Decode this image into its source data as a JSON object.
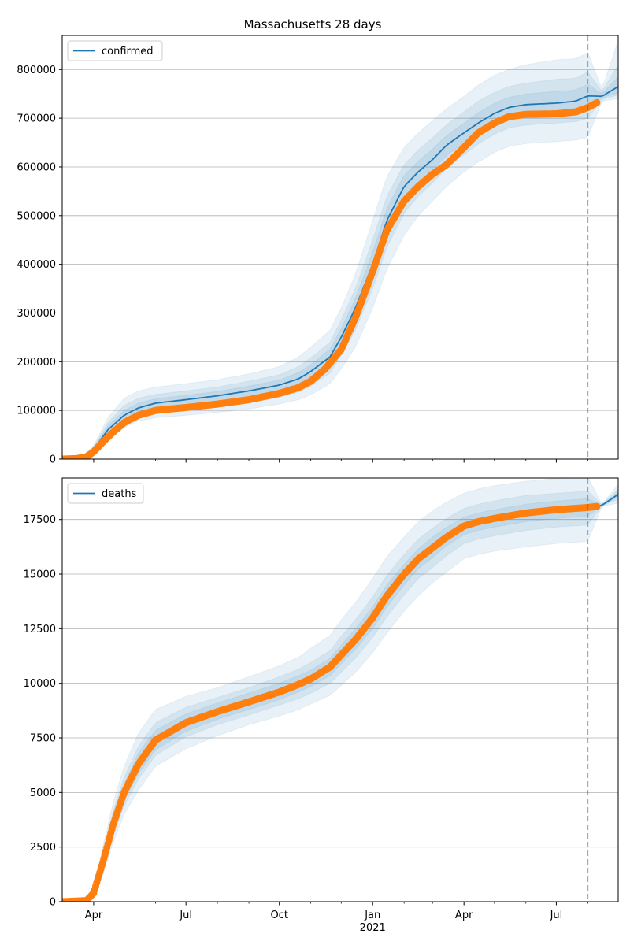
{
  "chart_data": [
    {
      "type": "line",
      "title": "Massachusetts 28 days",
      "legend": "confirmed",
      "legend_position": "top-left",
      "grid": "y",
      "xlabel": "",
      "ylabel": "",
      "x_ticks": [
        {
          "label": "Apr",
          "sub": ""
        },
        {
          "label": "Jul",
          "sub": ""
        },
        {
          "label": "Oct",
          "sub": ""
        },
        {
          "label": "Jan",
          "sub": "2021"
        },
        {
          "label": "Apr",
          "sub": ""
        },
        {
          "label": "Jul",
          "sub": ""
        }
      ],
      "xlim": [
        "2020-03-01",
        "2021-08-31"
      ],
      "forecast_start": "2021-08-01",
      "ylim": [
        0,
        870000
      ],
      "y_ticks": [
        0,
        100000,
        200000,
        300000,
        400000,
        500000,
        600000,
        700000,
        800000
      ],
      "model_series": {
        "name": "confirmed",
        "color": "#1f77b4",
        "x": [
          "2020-03-01",
          "2020-03-20",
          "2020-04-01",
          "2020-04-15",
          "2020-05-01",
          "2020-05-15",
          "2020-06-01",
          "2020-07-01",
          "2020-08-01",
          "2020-09-01",
          "2020-10-01",
          "2020-10-20",
          "2020-11-01",
          "2020-11-20",
          "2020-12-01",
          "2020-12-15",
          "2021-01-01",
          "2021-01-15",
          "2021-02-01",
          "2021-02-15",
          "2021-03-01",
          "2021-03-15",
          "2021-04-01",
          "2021-04-15",
          "2021-05-01",
          "2021-05-15",
          "2021-06-01",
          "2021-07-01",
          "2021-07-20",
          "2021-08-01",
          "2021-08-15",
          "2021-08-31"
        ],
        "values": [
          0,
          3000,
          20000,
          60000,
          90000,
          105000,
          115000,
          122000,
          130000,
          140000,
          152000,
          165000,
          180000,
          210000,
          250000,
          310000,
          400000,
          490000,
          560000,
          590000,
          615000,
          645000,
          670000,
          690000,
          710000,
          722000,
          728000,
          731000,
          735000,
          746000,
          745000,
          765000
        ]
      },
      "bands": [
        {
          "upper": [
            0,
            4000,
            28000,
            85000,
            125000,
            140000,
            148000,
            155000,
            163000,
            175000,
            190000,
            210000,
            230000,
            265000,
            310000,
            380000,
            490000,
            580000,
            640000,
            670000,
            695000,
            720000,
            745000,
            768000,
            788000,
            800000,
            810000,
            820000,
            822000,
            835000,
            760000,
            860000
          ],
          "lower": [
            0,
            1500,
            12000,
            40000,
            65000,
            78000,
            85000,
            90000,
            96000,
            103000,
            113000,
            122000,
            132000,
            155000,
            185000,
            230000,
            310000,
            390000,
            460000,
            500000,
            530000,
            560000,
            590000,
            610000,
            630000,
            642000,
            648000,
            652000,
            655000,
            660000,
            735000,
            740000
          ]
        },
        {
          "upper": [
            0,
            3600,
            25000,
            75000,
            110000,
            125000,
            133000,
            140000,
            148000,
            160000,
            173000,
            190000,
            208000,
            240000,
            285000,
            350000,
            450000,
            540000,
            605000,
            635000,
            660000,
            687000,
            713000,
            735000,
            753000,
            765000,
            772000,
            780000,
            782000,
            795000,
            755000,
            810000
          ],
          "lower": [
            0,
            2200,
            15000,
            48000,
            75000,
            88000,
            96000,
            102000,
            108000,
            116000,
            127000,
            138000,
            150000,
            177000,
            212000,
            265000,
            350000,
            435000,
            505000,
            540000,
            567000,
            597000,
            625000,
            647000,
            667000,
            680000,
            686000,
            690000,
            693000,
            700000,
            738000,
            748000
          ]
        },
        {
          "upper": [
            0,
            3300,
            23000,
            68000,
            100000,
            115000,
            124000,
            131000,
            139000,
            150000,
            162000,
            178000,
            194000,
            226000,
            268000,
            330000,
            425000,
            515000,
            583000,
            612000,
            637000,
            665000,
            690000,
            711000,
            731000,
            743000,
            750000,
            755000,
            758000,
            770000,
            750000,
            785000
          ],
          "lower": [
            0,
            2600,
            17000,
            53000,
            81000,
            95000,
            104000,
            111000,
            118000,
            127000,
            139000,
            151000,
            165000,
            193000,
            231000,
            288000,
            375000,
            465000,
            535000,
            568000,
            593000,
            623000,
            650000,
            670000,
            690000,
            702000,
            708000,
            711000,
            714000,
            720000,
            742000,
            752000
          ]
        }
      ],
      "observed": {
        "color": "#ff7f0e",
        "x": [
          "2020-03-01",
          "2020-03-15",
          "2020-03-25",
          "2020-04-01",
          "2020-04-10",
          "2020-04-20",
          "2020-05-01",
          "2020-05-15",
          "2020-06-01",
          "2020-07-01",
          "2020-08-01",
          "2020-09-01",
          "2020-10-01",
          "2020-10-20",
          "2020-11-01",
          "2020-11-15",
          "2020-12-01",
          "2020-12-15",
          "2021-01-01",
          "2021-01-15",
          "2021-02-01",
          "2021-02-15",
          "2021-03-01",
          "2021-03-15",
          "2021-04-01",
          "2021-04-15",
          "2021-05-01",
          "2021-05-15",
          "2021-06-01",
          "2021-07-01",
          "2021-07-20",
          "2021-08-01",
          "2021-08-10"
        ],
        "values": [
          0,
          1000,
          5000,
          15000,
          35000,
          55000,
          75000,
          90000,
          100000,
          106000,
          113000,
          122000,
          135000,
          147000,
          160000,
          185000,
          225000,
          290000,
          385000,
          470000,
          530000,
          560000,
          585000,
          605000,
          640000,
          670000,
          690000,
          703000,
          708000,
          709000,
          713000,
          722000,
          732000
        ]
      }
    },
    {
      "type": "line",
      "title": "",
      "legend": "deaths",
      "legend_position": "top-left",
      "grid": "y",
      "xlabel": "",
      "ylabel": "",
      "x_ticks": [
        {
          "label": "Apr",
          "sub": ""
        },
        {
          "label": "Jul",
          "sub": ""
        },
        {
          "label": "Oct",
          "sub": ""
        },
        {
          "label": "Jan",
          "sub": "2021"
        },
        {
          "label": "Apr",
          "sub": ""
        },
        {
          "label": "Jul",
          "sub": ""
        }
      ],
      "xlim": [
        "2020-03-01",
        "2021-08-31"
      ],
      "forecast_start": "2021-08-01",
      "ylim": [
        0,
        19400
      ],
      "y_ticks": [
        0,
        2500,
        5000,
        7500,
        10000,
        12500,
        15000,
        17500
      ],
      "model_series": {
        "name": "deaths",
        "color": "#1f77b4",
        "x": [
          "2020-03-01",
          "2020-03-25",
          "2020-04-01",
          "2020-04-10",
          "2020-04-20",
          "2020-05-01",
          "2020-05-15",
          "2020-06-01",
          "2020-07-01",
          "2020-08-01",
          "2020-09-01",
          "2020-10-01",
          "2020-10-20",
          "2020-11-01",
          "2020-11-20",
          "2020-12-01",
          "2020-12-15",
          "2021-01-01",
          "2021-01-15",
          "2021-02-01",
          "2021-02-15",
          "2021-03-01",
          "2021-03-15",
          "2021-04-01",
          "2021-04-15",
          "2021-05-01",
          "2021-06-01",
          "2021-07-01",
          "2021-08-01",
          "2021-08-15",
          "2021-08-31"
        ],
        "values": [
          0,
          50,
          400,
          1800,
          3500,
          5000,
          6300,
          7400,
          8200,
          8700,
          9150,
          9600,
          9950,
          10200,
          10750,
          11300,
          12000,
          13000,
          14000,
          15000,
          15700,
          16200,
          16700,
          17200,
          17400,
          17550,
          17800,
          17950,
          18050,
          18150,
          18650
        ]
      },
      "bands": [
        {
          "upper": [
            0,
            100,
            700,
            2500,
            4500,
            6200,
            7700,
            8800,
            9400,
            9800,
            10300,
            10800,
            11200,
            11600,
            12200,
            12900,
            13700,
            14800,
            15800,
            16700,
            17400,
            17900,
            18300,
            18700,
            18900,
            19050,
            19250,
            19380,
            19450,
            18200,
            19100
          ],
          "lower": [
            0,
            20,
            200,
            1200,
            2700,
            4000,
            5100,
            6200,
            7000,
            7600,
            8100,
            8500,
            8800,
            9050,
            9450,
            9900,
            10500,
            11400,
            12300,
            13300,
            14000,
            14600,
            15100,
            15700,
            15900,
            16050,
            16250,
            16400,
            16500,
            18100,
            18250
          ]
        },
        {
          "upper": [
            0,
            80,
            560,
            2200,
            4100,
            5700,
            7100,
            8200,
            8900,
            9350,
            9800,
            10300,
            10650,
            10950,
            11500,
            12150,
            12900,
            13950,
            14950,
            15900,
            16600,
            17100,
            17550,
            18000,
            18200,
            18350,
            18600,
            18700,
            18800,
            18170,
            18900
          ],
          "lower": [
            0,
            30,
            270,
            1450,
            3000,
            4400,
            5600,
            6700,
            7550,
            8100,
            8550,
            9000,
            9300,
            9550,
            10000,
            10500,
            11150,
            12100,
            13050,
            14050,
            14800,
            15300,
            15850,
            16400,
            16600,
            16750,
            17000,
            17150,
            17250,
            18120,
            18420
          ]
        },
        {
          "upper": [
            0,
            70,
            480,
            2000,
            3850,
            5400,
            6800,
            7850,
            8600,
            9100,
            9550,
            10000,
            10350,
            10600,
            11150,
            11750,
            12500,
            13500,
            14500,
            15450,
            16150,
            16700,
            17150,
            17600,
            17800,
            17950,
            18200,
            18350,
            18450,
            18160,
            18780
          ],
          "lower": [
            0,
            35,
            320,
            1600,
            3200,
            4650,
            5850,
            6950,
            7800,
            8350,
            8800,
            9250,
            9600,
            9850,
            10350,
            10900,
            11550,
            12500,
            13500,
            14500,
            15250,
            15750,
            16300,
            16800,
            17000,
            17150,
            17400,
            17550,
            17650,
            18140,
            18520
          ]
        }
      ],
      "observed": {
        "color": "#ff7f0e",
        "x": [
          "2020-03-01",
          "2020-03-25",
          "2020-04-01",
          "2020-04-10",
          "2020-04-20",
          "2020-05-01",
          "2020-05-15",
          "2020-06-01",
          "2020-07-01",
          "2020-08-01",
          "2020-09-01",
          "2020-10-01",
          "2020-10-20",
          "2020-11-01",
          "2020-11-20",
          "2020-12-01",
          "2020-12-15",
          "2021-01-01",
          "2021-01-15",
          "2021-02-01",
          "2021-02-15",
          "2021-03-01",
          "2021-03-15",
          "2021-04-01",
          "2021-04-15",
          "2021-05-01",
          "2021-06-01",
          "2021-07-01",
          "2021-08-01",
          "2021-08-10"
        ],
        "values": [
          0,
          50,
          400,
          1800,
          3500,
          5000,
          6300,
          7400,
          8200,
          8700,
          9150,
          9600,
          9950,
          10200,
          10750,
          11300,
          12000,
          13000,
          14000,
          15000,
          15700,
          16200,
          16700,
          17200,
          17400,
          17550,
          17800,
          17950,
          18050,
          18100
        ]
      }
    }
  ]
}
